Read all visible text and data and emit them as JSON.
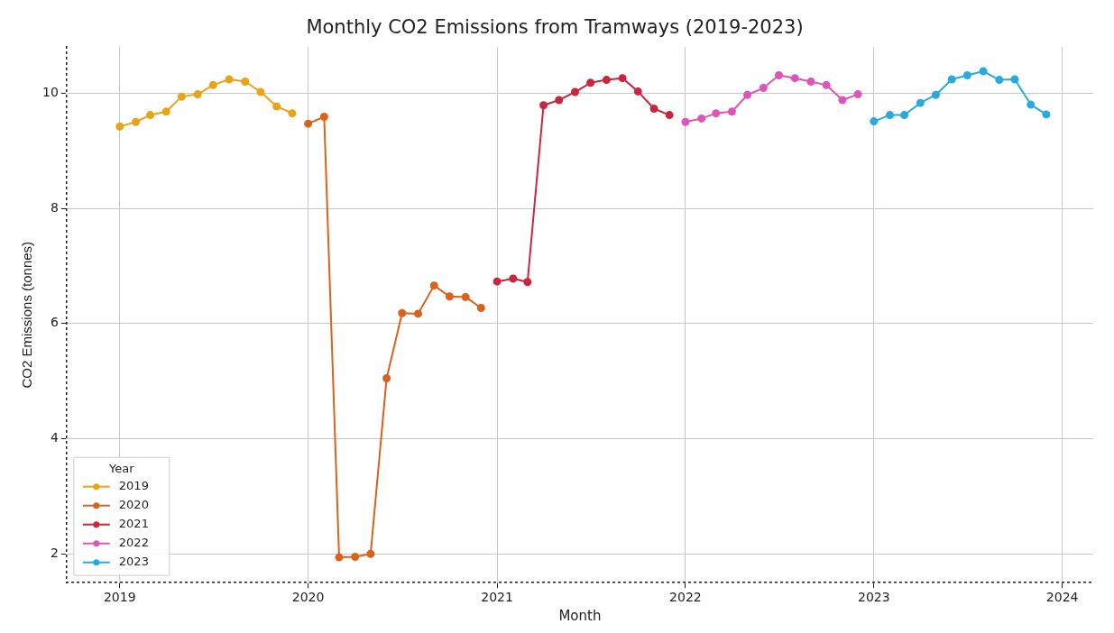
{
  "chart_data": {
    "type": "line",
    "title": "Monthly CO2 Emissions from Tramways (2019-2023)",
    "xlabel": "Month",
    "ylabel": "CO2 Emissions (tonnes)",
    "legend_title": "Year",
    "legend": "bottom left",
    "grid": true,
    "marker": "circle",
    "line_style": "solid",
    "xlim": [
      "2018-09-20",
      "2024-03-01"
    ],
    "xticks": [
      "2019",
      "2020",
      "2021",
      "2022",
      "2023",
      "2024"
    ],
    "ylim": [
      1.5,
      10.8
    ],
    "yticks": [
      2,
      4,
      6,
      8,
      10
    ],
    "series": [
      {
        "name": "2019",
        "color": "#e8a317",
        "x": [
          "2019-01",
          "2019-02",
          "2019-03",
          "2019-04",
          "2019-05",
          "2019-06",
          "2019-07",
          "2019-08",
          "2019-09",
          "2019-10",
          "2019-11",
          "2019-12"
        ],
        "values": [
          9.42,
          9.5,
          9.62,
          9.68,
          9.94,
          9.98,
          10.14,
          10.24,
          10.2,
          10.02,
          9.77,
          9.65
        ]
      },
      {
        "name": "2020",
        "color": "#d9621c",
        "x": [
          "2020-01",
          "2020-02",
          "2020-03",
          "2020-04",
          "2020-05",
          "2020-06",
          "2020-07",
          "2020-08",
          "2020-09",
          "2020-10",
          "2020-11",
          "2020-12"
        ],
        "values": [
          9.47,
          9.59,
          1.94,
          1.95,
          2.0,
          5.05,
          6.18,
          6.17,
          6.66,
          6.47,
          6.46,
          6.27
        ]
      },
      {
        "name": "2021",
        "color": "#c8273f",
        "x": [
          "2021-01",
          "2021-02",
          "2021-03",
          "2021-04",
          "2021-05",
          "2021-06",
          "2021-07",
          "2021-08",
          "2021-09",
          "2021-10",
          "2021-11",
          "2021-12"
        ],
        "values": [
          6.73,
          6.78,
          6.72,
          9.79,
          9.88,
          10.02,
          10.18,
          10.23,
          10.26,
          10.03,
          9.73,
          9.62
        ]
      },
      {
        "name": "2022",
        "color": "#de55b8",
        "x": [
          "2022-01",
          "2022-02",
          "2022-03",
          "2022-04",
          "2022-05",
          "2022-06",
          "2022-07",
          "2022-08",
          "2022-09",
          "2022-10",
          "2022-11",
          "2022-12"
        ],
        "values": [
          9.5,
          9.56,
          9.65,
          9.68,
          9.97,
          10.09,
          10.31,
          10.26,
          10.2,
          10.14,
          9.88,
          9.98
        ]
      },
      {
        "name": "2023",
        "color": "#2aaadc",
        "x": [
          "2023-01",
          "2023-02",
          "2023-03",
          "2023-04",
          "2023-05",
          "2023-06",
          "2023-07",
          "2023-08",
          "2023-09",
          "2023-10",
          "2023-11",
          "2023-12"
        ],
        "values": [
          9.51,
          9.62,
          9.62,
          9.83,
          9.97,
          10.24,
          10.31,
          10.38,
          10.23,
          10.24,
          9.8,
          9.63
        ]
      }
    ]
  }
}
